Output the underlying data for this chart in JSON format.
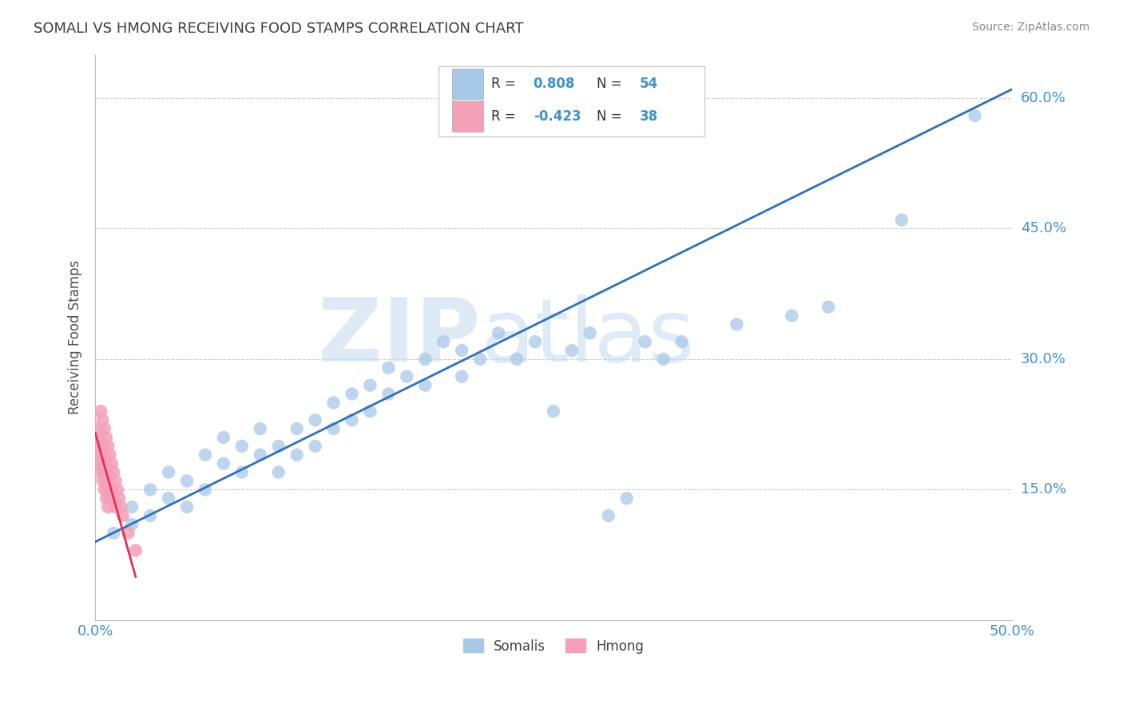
{
  "title": "SOMALI VS HMONG RECEIVING FOOD STAMPS CORRELATION CHART",
  "source_text": "Source: ZipAtlas.com",
  "ylabel": "Receiving Food Stamps",
  "xlim": [
    0.0,
    0.5
  ],
  "ylim": [
    0.0,
    0.65
  ],
  "xticks": [
    0.0,
    0.1,
    0.2,
    0.3,
    0.4,
    0.5
  ],
  "xtick_labels": [
    "0.0%",
    "",
    "",
    "",
    "",
    "50.0%"
  ],
  "yticks": [
    0.0,
    0.15,
    0.3,
    0.45,
    0.6
  ],
  "ytick_labels": [
    "",
    "15.0%",
    "30.0%",
    "45.0%",
    "60.0%"
  ],
  "somali_color": "#A8C8E8",
  "hmong_color": "#F4A0B8",
  "somali_line_color": "#3070B8",
  "hmong_line_color": "#E03060",
  "somali_R": 0.808,
  "somali_N": 54,
  "hmong_R": -0.423,
  "hmong_N": 38,
  "watermark": "ZIPatlas",
  "watermark_color": "#C8DCF0",
  "background_color": "#FFFFFF",
  "grid_color": "#CCCCCC",
  "title_color": "#404040",
  "axis_label_color": "#505050",
  "tick_label_color": "#4090D0",
  "legend_r_color": "#4090D0",
  "somali_points": [
    [
      0.01,
      0.1
    ],
    [
      0.02,
      0.13
    ],
    [
      0.02,
      0.11
    ],
    [
      0.03,
      0.15
    ],
    [
      0.03,
      0.12
    ],
    [
      0.04,
      0.14
    ],
    [
      0.04,
      0.17
    ],
    [
      0.05,
      0.16
    ],
    [
      0.05,
      0.13
    ],
    [
      0.06,
      0.19
    ],
    [
      0.06,
      0.15
    ],
    [
      0.07,
      0.18
    ],
    [
      0.07,
      0.21
    ],
    [
      0.08,
      0.17
    ],
    [
      0.08,
      0.2
    ],
    [
      0.09,
      0.19
    ],
    [
      0.09,
      0.22
    ],
    [
      0.1,
      0.2
    ],
    [
      0.1,
      0.17
    ],
    [
      0.11,
      0.22
    ],
    [
      0.11,
      0.19
    ],
    [
      0.12,
      0.23
    ],
    [
      0.12,
      0.2
    ],
    [
      0.13,
      0.25
    ],
    [
      0.13,
      0.22
    ],
    [
      0.14,
      0.26
    ],
    [
      0.14,
      0.23
    ],
    [
      0.15,
      0.27
    ],
    [
      0.15,
      0.24
    ],
    [
      0.16,
      0.26
    ],
    [
      0.16,
      0.29
    ],
    [
      0.17,
      0.28
    ],
    [
      0.18,
      0.3
    ],
    [
      0.18,
      0.27
    ],
    [
      0.19,
      0.32
    ],
    [
      0.2,
      0.31
    ],
    [
      0.2,
      0.28
    ],
    [
      0.21,
      0.3
    ],
    [
      0.22,
      0.33
    ],
    [
      0.23,
      0.3
    ],
    [
      0.24,
      0.32
    ],
    [
      0.25,
      0.24
    ],
    [
      0.26,
      0.31
    ],
    [
      0.27,
      0.33
    ],
    [
      0.28,
      0.12
    ],
    [
      0.29,
      0.14
    ],
    [
      0.3,
      0.32
    ],
    [
      0.31,
      0.3
    ],
    [
      0.32,
      0.32
    ],
    [
      0.35,
      0.34
    ],
    [
      0.38,
      0.35
    ],
    [
      0.4,
      0.36
    ],
    [
      0.44,
      0.46
    ],
    [
      0.48,
      0.58
    ]
  ],
  "hmong_points": [
    [
      0.002,
      0.22
    ],
    [
      0.002,
      0.2
    ],
    [
      0.002,
      0.18
    ],
    [
      0.003,
      0.24
    ],
    [
      0.003,
      0.21
    ],
    [
      0.003,
      0.19
    ],
    [
      0.003,
      0.17
    ],
    [
      0.004,
      0.23
    ],
    [
      0.004,
      0.2
    ],
    [
      0.004,
      0.18
    ],
    [
      0.004,
      0.16
    ],
    [
      0.005,
      0.22
    ],
    [
      0.005,
      0.19
    ],
    [
      0.005,
      0.17
    ],
    [
      0.005,
      0.15
    ],
    [
      0.006,
      0.21
    ],
    [
      0.006,
      0.18
    ],
    [
      0.006,
      0.16
    ],
    [
      0.006,
      0.14
    ],
    [
      0.007,
      0.2
    ],
    [
      0.007,
      0.17
    ],
    [
      0.007,
      0.15
    ],
    [
      0.007,
      0.13
    ],
    [
      0.008,
      0.19
    ],
    [
      0.008,
      0.16
    ],
    [
      0.008,
      0.14
    ],
    [
      0.009,
      0.18
    ],
    [
      0.009,
      0.15
    ],
    [
      0.01,
      0.17
    ],
    [
      0.01,
      0.14
    ],
    [
      0.011,
      0.16
    ],
    [
      0.011,
      0.13
    ],
    [
      0.012,
      0.15
    ],
    [
      0.013,
      0.14
    ],
    [
      0.014,
      0.13
    ],
    [
      0.015,
      0.12
    ],
    [
      0.018,
      0.1
    ],
    [
      0.022,
      0.08
    ]
  ],
  "somali_line_x": [
    0.0,
    0.5
  ],
  "somali_line_y": [
    0.09,
    0.61
  ],
  "hmong_line_x": [
    0.0,
    0.022
  ],
  "hmong_line_y": [
    0.215,
    0.05
  ]
}
